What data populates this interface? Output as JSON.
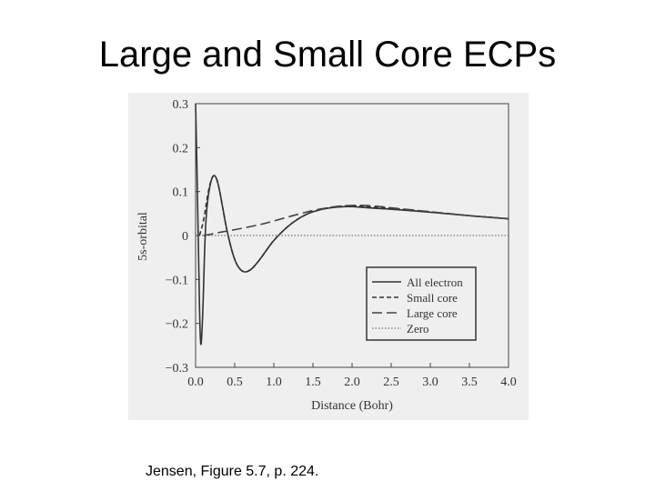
{
  "slide": {
    "title": "Large and Small Core ECPs",
    "caption": "Jensen, Figure 5.7, p. 224."
  },
  "chart_data": {
    "type": "line",
    "title": "",
    "xlabel": "Distance (Bohr)",
    "ylabel": "5s-orbital",
    "xlim": [
      0.0,
      4.0
    ],
    "ylim": [
      -0.3,
      0.3
    ],
    "xticks": [
      {
        "value": 0.0,
        "label": "0.0"
      },
      {
        "value": 0.5,
        "label": "0.5"
      },
      {
        "value": 1.0,
        "label": "1.0"
      },
      {
        "value": 1.5,
        "label": "1.5"
      },
      {
        "value": 2.0,
        "label": "2.0"
      },
      {
        "value": 2.5,
        "label": "2.5"
      },
      {
        "value": 3.0,
        "label": "3.0"
      },
      {
        "value": 3.5,
        "label": "3.5"
      },
      {
        "value": 4.0,
        "label": "4.0"
      }
    ],
    "yticks": [
      {
        "value": 0.3,
        "label": "0.3"
      },
      {
        "value": 0.2,
        "label": "0.2"
      },
      {
        "value": 0.1,
        "label": "0.1"
      },
      {
        "value": 0.0,
        "label": "0"
      },
      {
        "value": -0.1,
        "label": "−0.1"
      },
      {
        "value": -0.2,
        "label": "−0.2"
      },
      {
        "value": -0.3,
        "label": "−0.3"
      }
    ],
    "grid": false,
    "legend_position": "bottom-right",
    "series": [
      {
        "name": "All electron",
        "style": "solid",
        "color": "#333333",
        "x": [
          0.0,
          0.03,
          0.06,
          0.09,
          0.12,
          0.15,
          0.2,
          0.25,
          0.3,
          0.35,
          0.4,
          0.5,
          0.6,
          0.7,
          0.8,
          0.9,
          1.0,
          1.2,
          1.4,
          1.6,
          1.8,
          2.0,
          2.2,
          2.5,
          3.0,
          3.5,
          4.0
        ],
        "y": [
          0.3,
          0.05,
          -0.28,
          -0.2,
          0.0,
          0.08,
          0.13,
          0.14,
          0.11,
          0.06,
          0.01,
          -0.06,
          -0.085,
          -0.08,
          -0.06,
          -0.035,
          -0.01,
          0.025,
          0.048,
          0.06,
          0.065,
          0.066,
          0.063,
          0.06,
          0.053,
          0.045,
          0.038
        ]
      },
      {
        "name": "Small core",
        "style": "dash",
        "color": "#333333",
        "x": [
          0.05,
          0.1,
          0.15,
          0.2,
          0.25,
          0.3,
          0.35,
          0.4,
          0.5,
          0.6,
          0.7,
          0.8,
          0.9,
          1.0,
          1.2,
          1.4,
          1.6,
          1.8,
          2.0,
          2.2,
          2.5,
          3.0,
          3.5,
          4.0
        ],
        "y": [
          0.0,
          0.03,
          0.09,
          0.13,
          0.14,
          0.11,
          0.06,
          0.01,
          -0.06,
          -0.085,
          -0.08,
          -0.06,
          -0.035,
          -0.01,
          0.025,
          0.048,
          0.06,
          0.066,
          0.068,
          0.066,
          0.062,
          0.054,
          0.045,
          0.038
        ]
      },
      {
        "name": "Large core",
        "style": "longdash",
        "color": "#444444",
        "x": [
          0.1,
          0.2,
          0.3,
          0.4,
          0.5,
          0.7,
          0.9,
          1.1,
          1.3,
          1.5,
          1.7,
          1.9,
          2.1,
          2.3,
          2.5,
          3.0,
          3.5,
          4.0
        ],
        "y": [
          0.0,
          0.003,
          0.007,
          0.01,
          0.013,
          0.02,
          0.028,
          0.038,
          0.048,
          0.057,
          0.064,
          0.068,
          0.069,
          0.067,
          0.063,
          0.054,
          0.045,
          0.038
        ]
      },
      {
        "name": "Zero",
        "style": "dot",
        "color": "#555555",
        "x": [
          0.0,
          4.0
        ],
        "y": [
          0.0,
          0.0
        ]
      }
    ],
    "extra_curve_note_none": null
  }
}
